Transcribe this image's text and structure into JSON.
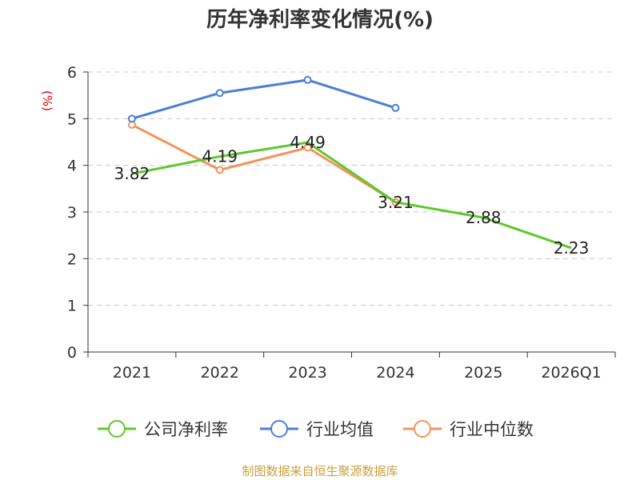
{
  "chart_data": {
    "type": "line",
    "title": "历年净利率变化情况(%)",
    "ylabel": "(%)",
    "xlabel": "",
    "categories": [
      "2021",
      "2022",
      "2023",
      "2024",
      "2025",
      "2026Q1"
    ],
    "ylim": [
      0,
      6
    ],
    "yticks": [
      0,
      1,
      2,
      3,
      4,
      5,
      6
    ],
    "grid": true,
    "legend_position": "bottom",
    "series": [
      {
        "name": "公司净利率",
        "color": "#5ec82e",
        "values": [
          3.82,
          4.19,
          4.49,
          3.21,
          2.88,
          2.23
        ],
        "data_labels": [
          "3.82",
          "4.19",
          "4.49",
          "3.21",
          "2.88",
          "2.23"
        ]
      },
      {
        "name": "行业均值",
        "color": "#4a7fd6",
        "values": [
          5.0,
          5.55,
          5.83,
          5.23,
          null,
          null
        ]
      },
      {
        "name": "行业中位数",
        "color": "#f5935a",
        "values": [
          4.87,
          3.9,
          4.38,
          3.21,
          null,
          null
        ]
      }
    ]
  },
  "footer": {
    "source": "制图数据来自恒生聚源数据库"
  }
}
